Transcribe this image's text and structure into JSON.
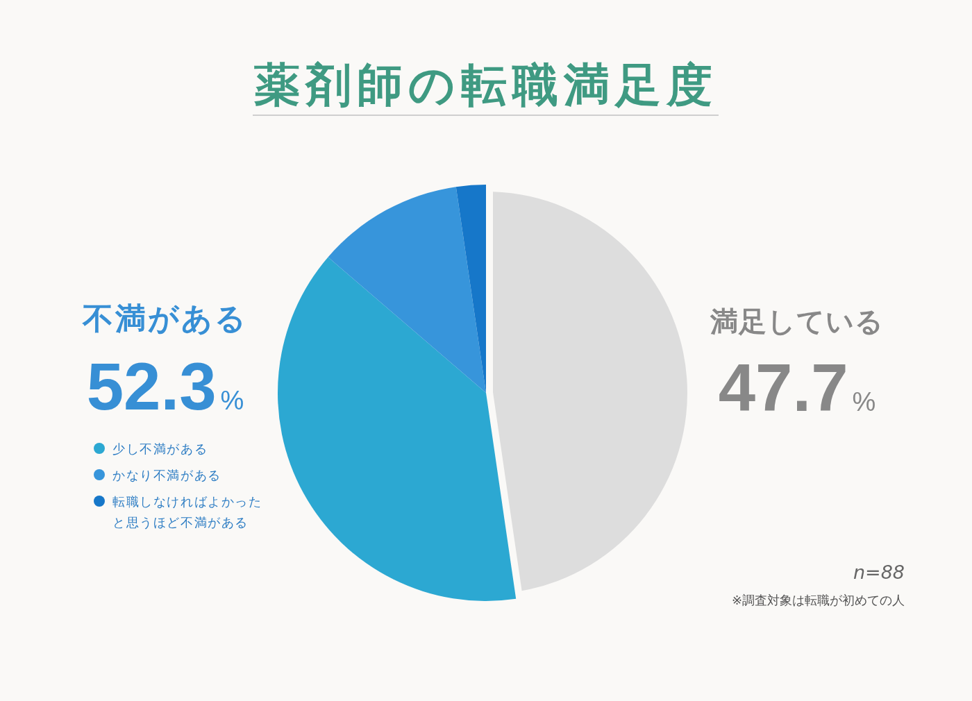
{
  "chart_data": {
    "type": "pie",
    "title": "薬剤師の転職満足度",
    "categories": [
      "満足している",
      "少し不満がある",
      "かなり不満がある",
      "転職しなければよかったと思うほど不満がある"
    ],
    "values": [
      47.7,
      38.6,
      11.4,
      2.3
    ],
    "colors": [
      "#dddddd",
      "#2ca8d2",
      "#3795db",
      "#1677c9"
    ],
    "value_labels": [
      "47.7%",
      null,
      null,
      null
    ],
    "legend": "left",
    "annotations": [
      "不満がある",
      "52.3%",
      "n=88",
      "※調査対象は転職が初めての人"
    ]
  }
}
